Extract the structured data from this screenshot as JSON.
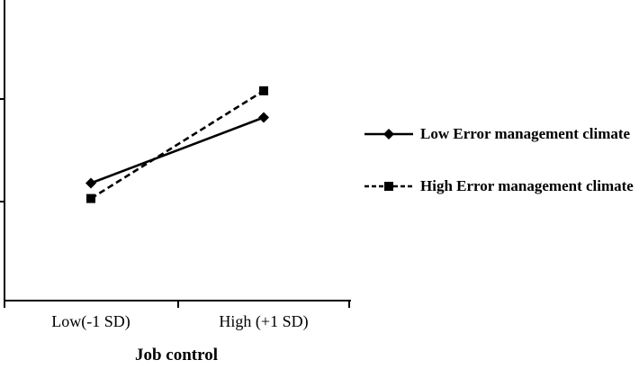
{
  "figure": {
    "background": "#ffffff",
    "ink_color": "#000000"
  },
  "chart_data": {
    "type": "line",
    "title": "",
    "xlabel": "Job control",
    "ylabel": "",
    "categories": [
      "Low(-1 SD)",
      "High (+1 SD)"
    ],
    "series": [
      {
        "name": "Low Error management climate",
        "line_style": "solid",
        "marker": "diamond",
        "color": "#000000",
        "values": [
          0.18,
          0.82
        ]
      },
      {
        "name": "High Error management climate",
        "line_style": "dashed",
        "marker": "square",
        "color": "#000000",
        "values": [
          0.03,
          1.08
        ]
      }
    ],
    "y_axis": {
      "tick_labels": [],
      "tick_count": 2,
      "note": "y-axis tick marks are unlabeled; series values are normalized so the lower tick = 0 and the upper tick = 1"
    },
    "x_axis_tick_count": 3,
    "grid": false,
    "legend_position": "right-center"
  }
}
